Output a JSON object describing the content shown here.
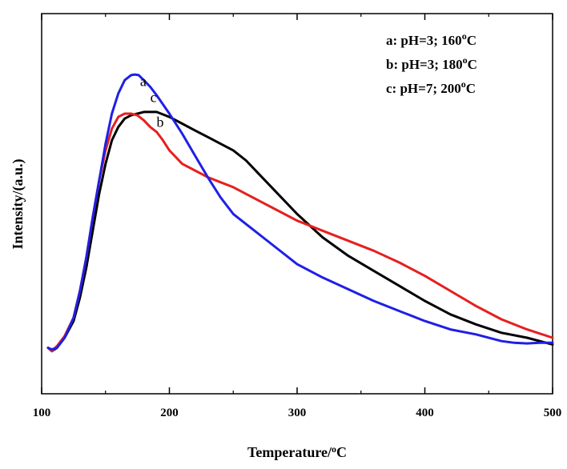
{
  "chart_data": {
    "type": "line",
    "xlabel": "Temperature/",
    "xlabel_unit_sup": "o",
    "xlabel_unit_end": "C",
    "ylabel": "Intensity/(a.u.)",
    "xlim": [
      100,
      500
    ],
    "ylim": [
      0,
      1
    ],
    "xticks": [
      100,
      200,
      300,
      400,
      500
    ],
    "y_tick_labels": false,
    "grid": false,
    "legend_position": "top-right",
    "legend": [
      {
        "prefix": "a: pH=3; 160",
        "sup": "o",
        "suffix": "C"
      },
      {
        "prefix": "b: pH=3; 180",
        "sup": "o",
        "suffix": "C"
      },
      {
        "prefix": "c: pH=7; 200",
        "sup": "o",
        "suffix": "C"
      }
    ],
    "series": [
      {
        "name": "a",
        "color": "#1f1fe6",
        "label_at": [
          177,
          0.862
        ],
        "x": [
          105,
          108,
          112,
          118,
          125,
          130,
          135,
          140,
          145,
          150,
          155,
          160,
          165,
          170,
          173,
          176,
          180,
          185,
          190,
          200,
          210,
          220,
          230,
          240,
          250,
          260,
          280,
          300,
          320,
          340,
          360,
          380,
          400,
          420,
          440,
          460,
          470,
          480,
          490,
          500
        ],
        "y": [
          0.08,
          0.075,
          0.08,
          0.11,
          0.17,
          0.25,
          0.35,
          0.47,
          0.58,
          0.69,
          0.78,
          0.84,
          0.88,
          0.895,
          0.897,
          0.895,
          0.88,
          0.86,
          0.835,
          0.78,
          0.72,
          0.655,
          0.59,
          0.53,
          0.48,
          0.45,
          0.39,
          0.33,
          0.29,
          0.255,
          0.22,
          0.19,
          0.16,
          0.135,
          0.12,
          0.1,
          0.095,
          0.093,
          0.095,
          0.095
        ]
      },
      {
        "name": "b",
        "color": "#e61f1f",
        "label_at": [
          190,
          0.74
        ],
        "x": [
          105,
          108,
          112,
          118,
          125,
          130,
          135,
          140,
          145,
          150,
          155,
          160,
          165,
          170,
          175,
          180,
          185,
          190,
          195,
          200,
          210,
          220,
          230,
          240,
          250,
          260,
          280,
          300,
          320,
          340,
          360,
          380,
          400,
          420,
          440,
          460,
          480,
          500
        ],
        "y": [
          0.08,
          0.07,
          0.085,
          0.115,
          0.17,
          0.25,
          0.35,
          0.47,
          0.58,
          0.67,
          0.735,
          0.77,
          0.78,
          0.78,
          0.775,
          0.76,
          0.74,
          0.725,
          0.7,
          0.67,
          0.63,
          0.61,
          0.59,
          0.575,
          0.56,
          0.54,
          0.5,
          0.46,
          0.43,
          0.4,
          0.37,
          0.335,
          0.295,
          0.25,
          0.205,
          0.165,
          0.135,
          0.11
        ]
      },
      {
        "name": "c",
        "color": "#000000",
        "label_at": [
          185,
          0.815
        ],
        "x": [
          105,
          108,
          112,
          118,
          125,
          130,
          135,
          140,
          145,
          150,
          155,
          160,
          165,
          170,
          175,
          180,
          185,
          190,
          200,
          210,
          220,
          230,
          240,
          250,
          260,
          270,
          280,
          300,
          320,
          340,
          360,
          380,
          400,
          420,
          440,
          460,
          480,
          500
        ],
        "y": [
          0.08,
          0.07,
          0.08,
          0.11,
          0.16,
          0.23,
          0.32,
          0.43,
          0.54,
          0.63,
          0.7,
          0.74,
          0.765,
          0.775,
          0.78,
          0.785,
          0.785,
          0.785,
          0.77,
          0.75,
          0.73,
          0.71,
          0.69,
          0.67,
          0.64,
          0.6,
          0.56,
          0.48,
          0.41,
          0.355,
          0.31,
          0.265,
          0.22,
          0.18,
          0.15,
          0.125,
          0.11,
          0.09
        ]
      }
    ]
  }
}
